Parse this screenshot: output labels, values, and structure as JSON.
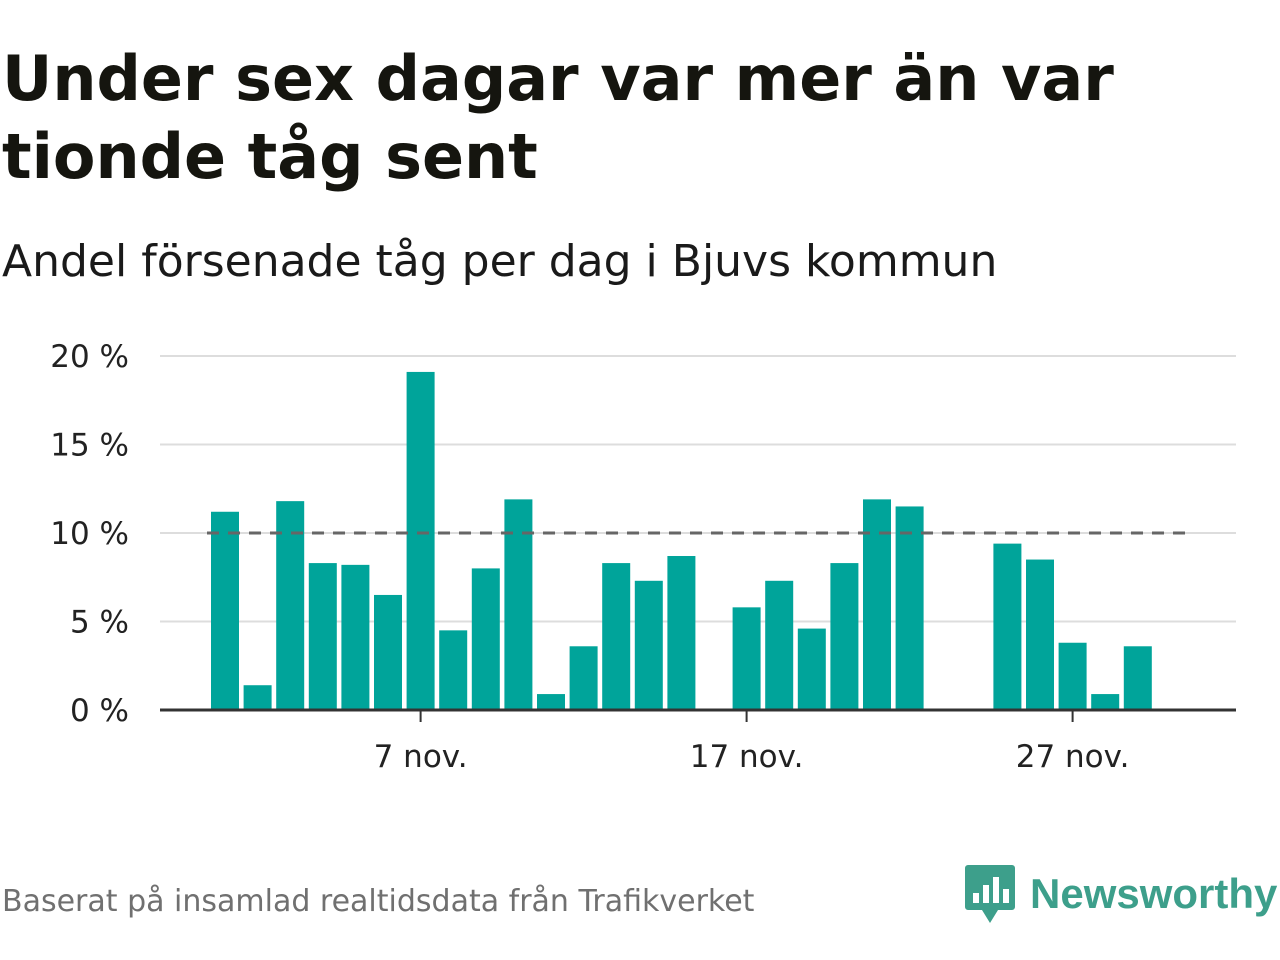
{
  "title": "Under sex dagar var mer än var tionde tåg sent",
  "subtitle": "Andel försenade tåg per dag i Bjuvs kommun",
  "source": "Baserat på insamlad realtidsdata från Trafikverket",
  "brand": "Newsworthy",
  "colors": {
    "bar": "#00a49a",
    "reference_line": "#666666",
    "grid": "#dddddd",
    "brand": "#3d9f8b"
  },
  "chart_data": {
    "type": "bar",
    "x_unit": "date",
    "x": [
      "1 nov.",
      "2 nov.",
      "3 nov.",
      "4 nov.",
      "5 nov.",
      "6 nov.",
      "7 nov.",
      "8 nov.",
      "9 nov.",
      "10 nov.",
      "11 nov.",
      "12 nov.",
      "13 nov.",
      "14 nov.",
      "15 nov.",
      "16 nov.",
      "17 nov.",
      "18 nov.",
      "19 nov.",
      "20 nov.",
      "21 nov.",
      "22 nov.",
      "23 nov.",
      "24 nov.",
      "25 nov.",
      "26 nov.",
      "27 nov.",
      "28 nov.",
      "29 nov.",
      "30 nov."
    ],
    "values": [
      11.2,
      1.4,
      11.8,
      8.3,
      8.2,
      6.5,
      19.1,
      4.5,
      8.0,
      11.9,
      0.9,
      3.6,
      8.3,
      7.3,
      8.7,
      null,
      5.8,
      7.3,
      4.6,
      8.3,
      11.9,
      11.5,
      null,
      null,
      9.4,
      8.5,
      3.8,
      0.9,
      3.6,
      null
    ],
    "unit": "%",
    "ylim": [
      0,
      20
    ],
    "y_ticks": [
      {
        "value": 0,
        "label": "0 %"
      },
      {
        "value": 5,
        "label": "5 %"
      },
      {
        "value": 10,
        "label": "10 %"
      },
      {
        "value": 15,
        "label": "15 %"
      },
      {
        "value": 20,
        "label": "20 %"
      }
    ],
    "x_ticks": [
      {
        "date": "7 nov.",
        "label": "7 nov."
      },
      {
        "date": "17 nov.",
        "label": "17 nov."
      },
      {
        "date": "27 nov.",
        "label": "27 nov."
      }
    ],
    "reference_line": {
      "value": 10,
      "style": "dashed"
    },
    "grid": true,
    "legend": "none"
  }
}
